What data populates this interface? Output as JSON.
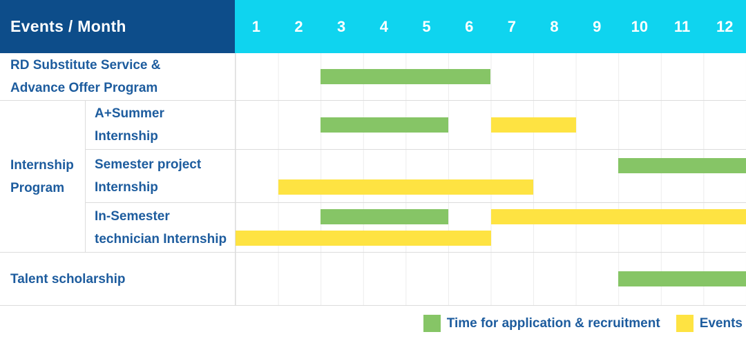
{
  "header": {
    "title": "Events / Month"
  },
  "chart_data": {
    "type": "gantt",
    "title": "Events / Month",
    "months": [
      "1",
      "2",
      "3",
      "4",
      "5",
      "6",
      "7",
      "8",
      "9",
      "10",
      "11",
      "12"
    ],
    "x_range": [
      1,
      12
    ],
    "grid": true,
    "legend_position": "bottom-right",
    "colors": {
      "recruitment": "#86c566",
      "event": "#fee342",
      "header_bg": "#0d4d8a",
      "months_bg": "#0fd4ef",
      "label_text": "#1d5c9e"
    },
    "group_label": "Internship\nProgram",
    "rows": [
      {
        "label": "RD Substitute Service &\nAdvance Offer Program",
        "group": null,
        "lines": [
          [
            {
              "type": "recruitment",
              "start": 3,
              "end": 6
            }
          ]
        ]
      },
      {
        "label": "A+Summer\nInternship",
        "group": "Internship Program",
        "lines": [
          [
            {
              "type": "recruitment",
              "start": 3,
              "end": 5
            },
            {
              "type": "event",
              "start": 7,
              "end": 8
            }
          ]
        ]
      },
      {
        "label": "Semester project\nInternship",
        "group": "Internship Program",
        "lines": [
          [
            {
              "type": "recruitment",
              "start": 10,
              "end": 12
            }
          ],
          [
            {
              "type": "event",
              "start": 2,
              "end": 7
            }
          ]
        ]
      },
      {
        "label": "In-Semester\ntechnician Internship",
        "group": "Internship Program",
        "lines": [
          [
            {
              "type": "recruitment",
              "start": 3,
              "end": 5
            },
            {
              "type": "event",
              "start": 7,
              "end": 12
            }
          ],
          [
            {
              "type": "event",
              "start": 1,
              "end": 6
            }
          ]
        ]
      },
      {
        "label": "Talent scholarship",
        "group": null,
        "lines": [
          [
            {
              "type": "recruitment",
              "start": 10,
              "end": 12
            }
          ]
        ]
      }
    ],
    "legend": [
      {
        "type": "recruitment",
        "label": "Time for application & recruitment"
      },
      {
        "type": "event",
        "label": "Events"
      }
    ]
  }
}
